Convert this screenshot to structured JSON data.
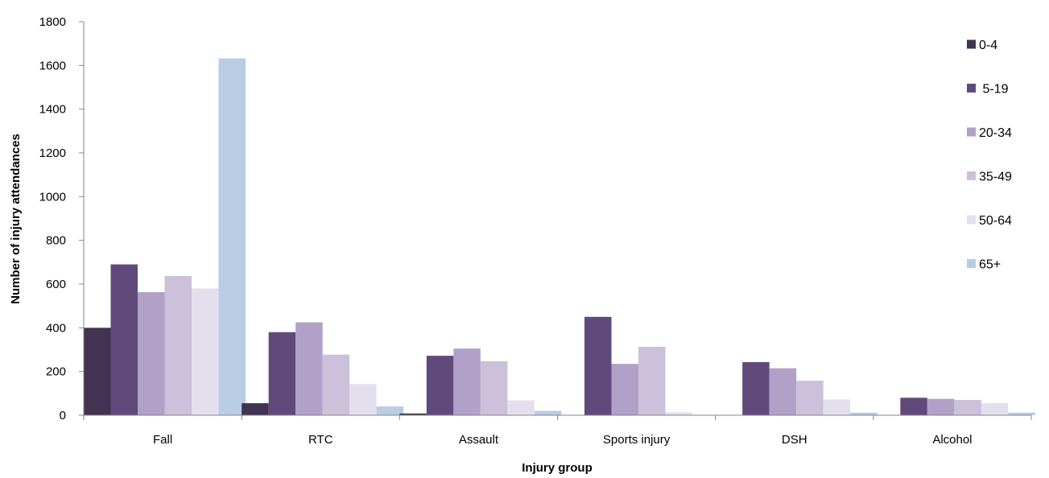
{
  "chart_data": {
    "type": "bar",
    "title": "",
    "xlabel": "Injury group",
    "ylabel": "Number of injury attendances",
    "ylim": [
      0,
      1800
    ],
    "yticks": [
      0,
      200,
      400,
      600,
      800,
      1000,
      1200,
      1400,
      1600,
      1800
    ],
    "grid": false,
    "legend_position": "right",
    "categories": [
      "Fall",
      "RTC",
      "Assault",
      "Sports injury",
      "DSH",
      "Alcohol"
    ],
    "series": [
      {
        "name": "0-4",
        "color": "#433352",
        "values": [
          400,
          55,
          8,
          0,
          0,
          0
        ]
      },
      {
        "name": " 5-19",
        "color": "#604A7B",
        "values": [
          690,
          380,
          272,
          450,
          243,
          80
        ]
      },
      {
        "name": "20-34",
        "color": "#B1A0C7",
        "values": [
          563,
          425,
          305,
          235,
          215,
          75
        ]
      },
      {
        "name": "35-49",
        "color": "#CCC0DA",
        "values": [
          637,
          277,
          247,
          313,
          158,
          70
        ]
      },
      {
        "name": "50-64",
        "color": "#E4DFEC",
        "values": [
          580,
          143,
          68,
          13,
          72,
          55
        ]
      },
      {
        "name": "65+",
        "color": "#B8CCE4",
        "values": [
          1632,
          40,
          20,
          0,
          12,
          12
        ]
      }
    ]
  }
}
